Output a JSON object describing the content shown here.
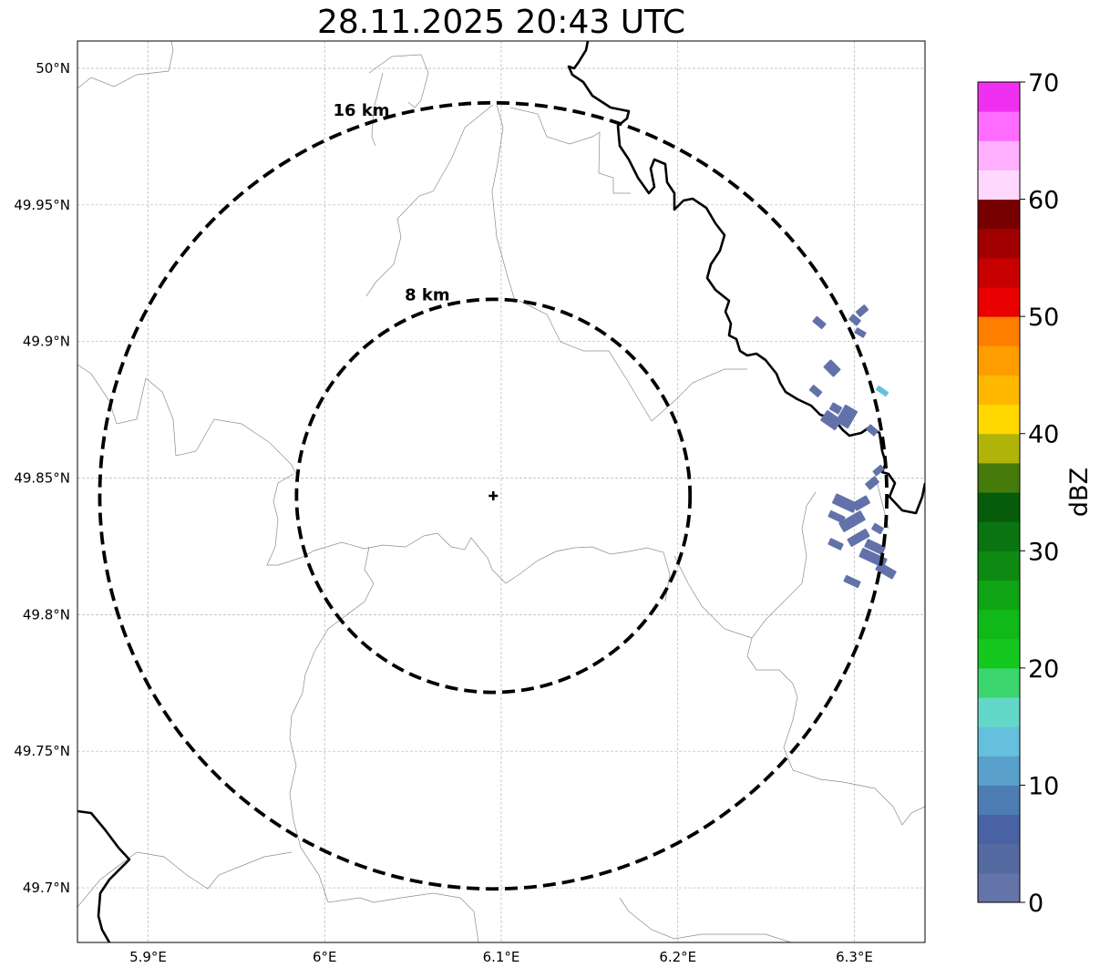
{
  "map": {
    "title": "28.11.2025 20:43 UTC",
    "lon_range": [
      5.86,
      6.34
    ],
    "lat_range": [
      49.68,
      50.01
    ],
    "lon_ticks": [
      {
        "value": 5.9,
        "label": "5.9°E"
      },
      {
        "value": 6.0,
        "label": "6°E"
      },
      {
        "value": 6.1,
        "label": "6.1°E"
      },
      {
        "value": 6.2,
        "label": "6.2°E"
      },
      {
        "value": 6.3,
        "label": "6.3°E"
      }
    ],
    "lat_ticks": [
      {
        "value": 50.0,
        "label": "50°N"
      },
      {
        "value": 49.95,
        "label": "49.95°N"
      },
      {
        "value": 49.9,
        "label": "49.9°N"
      },
      {
        "value": 49.85,
        "label": "49.85°N"
      },
      {
        "value": 49.8,
        "label": "49.8°N"
      },
      {
        "value": 49.75,
        "label": "49.75°N"
      },
      {
        "value": 49.7,
        "label": "49.7°N"
      }
    ],
    "gridlines": true,
    "radar_site": {
      "lon": 6.0955,
      "lat": 49.8435
    },
    "range_rings": [
      {
        "radius_km": 16,
        "label": "16 km"
      },
      {
        "radius_km": 8,
        "label": "8 km"
      }
    ],
    "borders_color": "#000000",
    "echo_color": "#6272a9",
    "echo_color_light": "#63c0dc"
  },
  "colorbar": {
    "label": "dBZ",
    "range": [
      0,
      70
    ],
    "ticks": [
      {
        "value": 0,
        "label": "0"
      },
      {
        "value": 10,
        "label": "10"
      },
      {
        "value": 20,
        "label": "20"
      },
      {
        "value": 30,
        "label": "30"
      },
      {
        "value": 40,
        "label": "40"
      },
      {
        "value": 50,
        "label": "50"
      },
      {
        "value": 60,
        "label": "60"
      },
      {
        "value": 70,
        "label": "70"
      }
    ],
    "colors": [
      "#6474a8",
      "#566aa2",
      "#4862a4",
      "#4d7cb2",
      "#5aa0cc",
      "#64c0dc",
      "#64d8c8",
      "#3cd66e",
      "#14c81e",
      "#10b818",
      "#0ea414",
      "#0e8a12",
      "#0a7410",
      "#065c0a",
      "#467a0a",
      "#b0b40a",
      "#ffd800",
      "#ffb800",
      "#ff9c00",
      "#ff7e00",
      "#e80000",
      "#c80000",
      "#a00000",
      "#780000",
      "#ffd8ff",
      "#ffb0ff",
      "#ff6cff",
      "#f030f0"
    ]
  }
}
